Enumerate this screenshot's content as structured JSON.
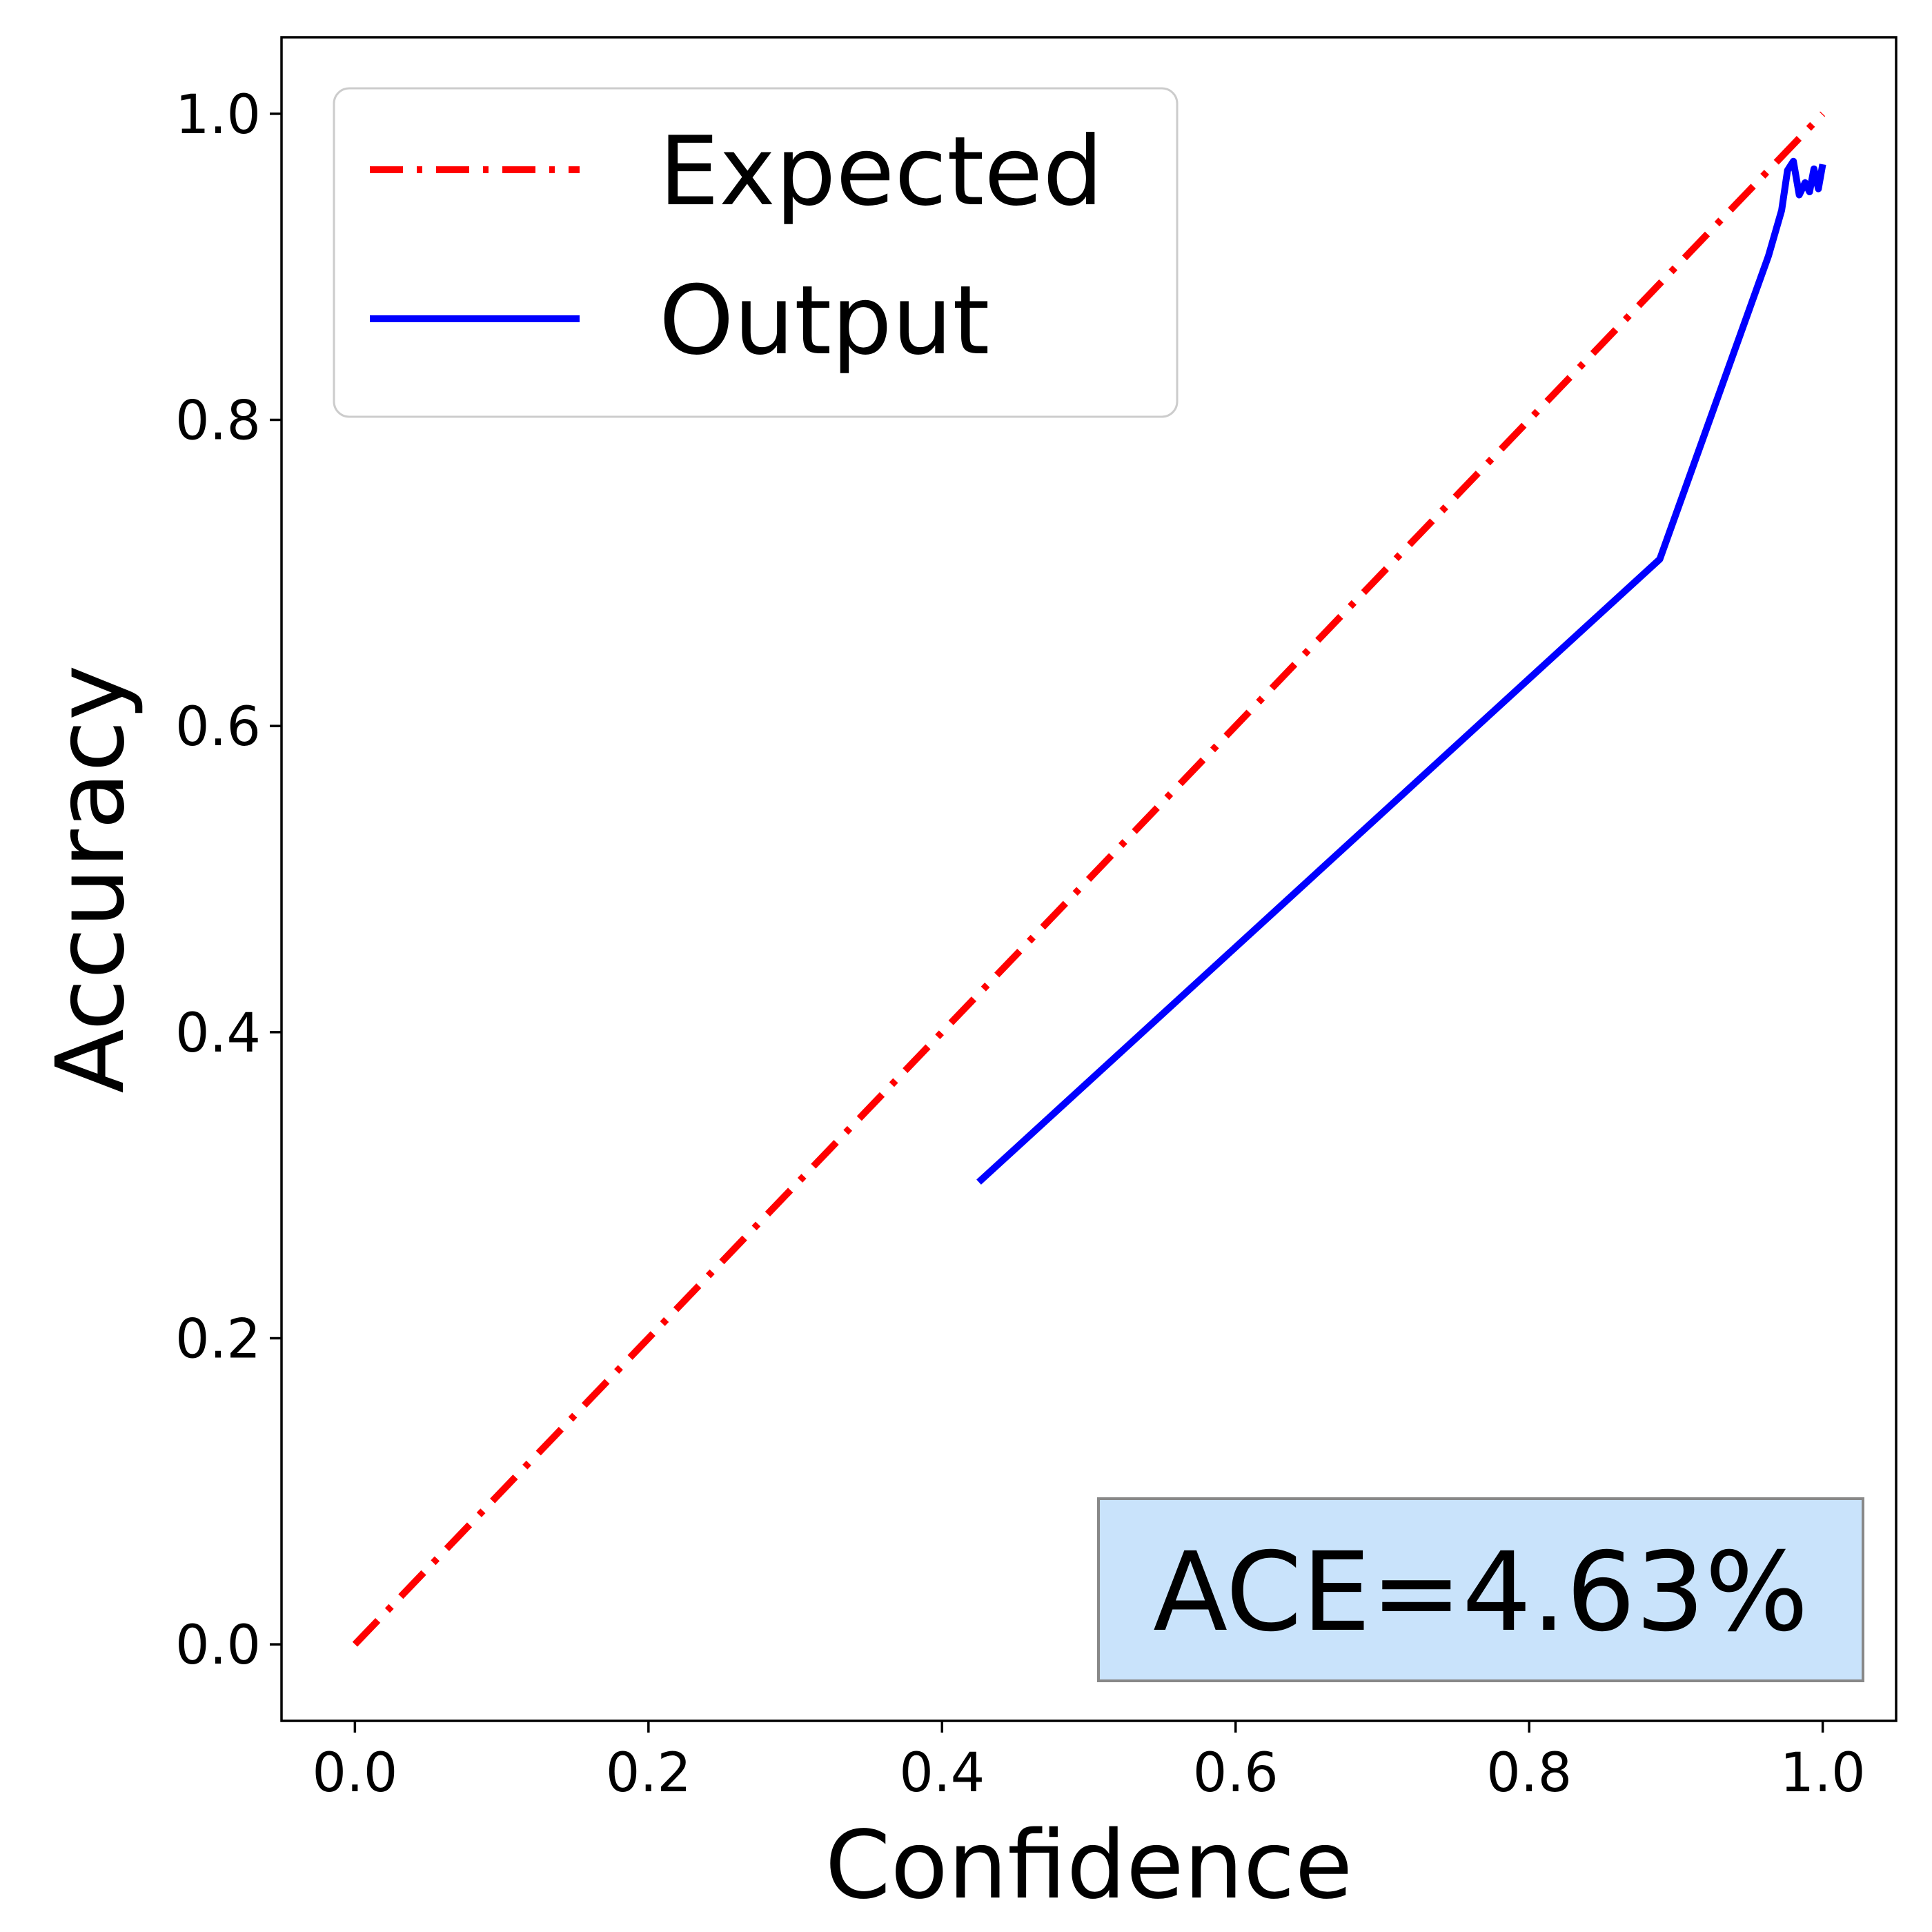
{
  "chart_data": {
    "type": "line",
    "title": "",
    "xlabel": "Confidence",
    "ylabel": "Accuracy",
    "xlim": [
      -0.05,
      1.05
    ],
    "ylim": [
      -0.05,
      1.05
    ],
    "xticks": [
      0.0,
      0.2,
      0.4,
      0.6,
      0.8,
      1.0
    ],
    "yticks": [
      0.0,
      0.2,
      0.4,
      0.6,
      0.8,
      1.0
    ],
    "xtick_labels": [
      "0.0",
      "0.2",
      "0.4",
      "0.6",
      "0.8",
      "1.0"
    ],
    "ytick_labels": [
      "0.0",
      "0.2",
      "0.4",
      "0.6",
      "0.8",
      "1.0"
    ],
    "grid": false,
    "legend_position": "top-left",
    "series": [
      {
        "name": "Expected",
        "color": "#ff0000",
        "style": "dash-dot",
        "x": [
          0.0,
          1.0
        ],
        "y": [
          0.0,
          1.0
        ]
      },
      {
        "name": "Output",
        "color": "#0000ff",
        "style": "solid",
        "x": [
          0.425,
          0.889,
          0.963,
          0.972,
          0.976,
          0.98,
          0.984,
          0.988,
          0.991,
          0.994,
          0.997,
          1.0
        ],
        "y": [
          0.302,
          0.709,
          0.907,
          0.937,
          0.963,
          0.969,
          0.947,
          0.955,
          0.949,
          0.964,
          0.951,
          0.967
        ]
      }
    ],
    "annotation": {
      "text": "ACE=4.63%",
      "position": "bottom-right",
      "background": "#c9e3fb",
      "border": "#888888"
    }
  }
}
